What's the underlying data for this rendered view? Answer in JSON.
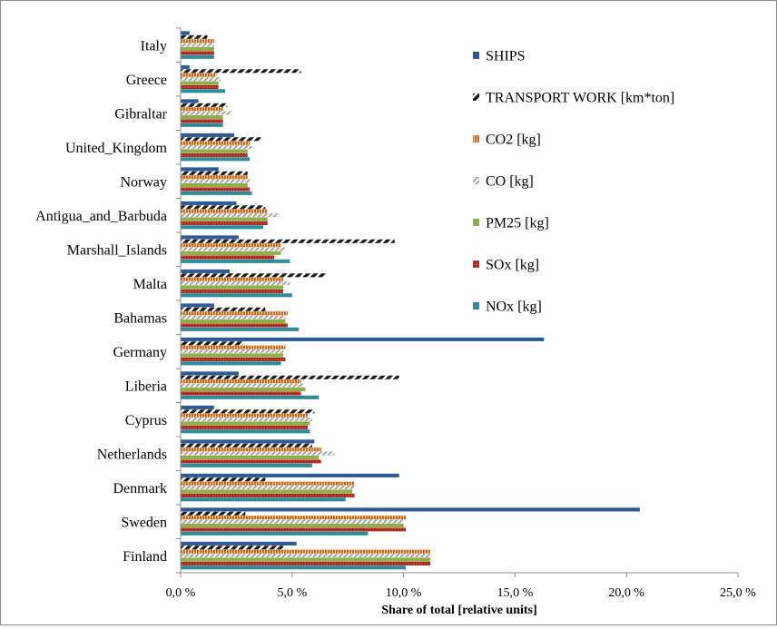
{
  "chart_data": {
    "type": "bar",
    "orientation": "horizontal",
    "xlabel": "Share of total [relative units]",
    "xlim": [
      0,
      25
    ],
    "x_ticks": [
      "0,0 %",
      "5,0 %",
      "10,0 %",
      "15,0 %",
      "20,0 %",
      "25,0 %"
    ],
    "legend_position": "right",
    "grid": false,
    "categories": [
      "Italy",
      "Greece",
      "Gibraltar",
      "United_Kingdom",
      "Norway",
      "Antigua_and_Barbuda",
      "Marshall_Islands",
      "Malta",
      "Bahamas",
      "Germany",
      "Liberia",
      "Cyprus",
      "Netherlands",
      "Denmark",
      "Sweden",
      "Finland"
    ],
    "series": [
      {
        "name": "SHIPS",
        "color": "#2e5a96",
        "pattern": "solid",
        "values": [
          0.4,
          0.4,
          0.8,
          2.4,
          1.7,
          2.5,
          2.6,
          2.2,
          1.5,
          16.3,
          2.6,
          1.5,
          6.0,
          9.8,
          20.6,
          5.2
        ]
      },
      {
        "name": "TRANSPORT WORK [km*ton]",
        "color": "#1a1a1a",
        "pattern": "diagonal-dark",
        "values": [
          1.2,
          5.4,
          2.1,
          3.6,
          3.0,
          3.8,
          9.6,
          6.5,
          3.8,
          2.8,
          9.8,
          6.0,
          5.9,
          3.8,
          2.9,
          4.6
        ]
      },
      {
        "name": "CO2 [kg]",
        "color": "#d0660f",
        "pattern": "vertical-stripes",
        "values": [
          1.5,
          1.6,
          1.9,
          3.1,
          3.0,
          3.9,
          4.5,
          4.6,
          4.8,
          4.7,
          5.4,
          5.7,
          6.3,
          7.8,
          10.1,
          11.2
        ]
      },
      {
        "name": "CO [kg]",
        "color": "#a6a6a6",
        "pattern": "diagonal-light",
        "values": [
          1.5,
          1.8,
          2.3,
          3.2,
          3.1,
          4.4,
          4.7,
          4.9,
          4.7,
          4.6,
          5.5,
          5.9,
          6.9,
          7.8,
          10.0,
          11.2
        ]
      },
      {
        "name": "PM25 [kg]",
        "color": "#8db049",
        "pattern": "solid",
        "values": [
          1.5,
          1.7,
          1.9,
          3.0,
          3.0,
          3.9,
          4.5,
          4.6,
          4.7,
          4.6,
          5.6,
          5.8,
          6.2,
          7.7,
          10.0,
          11.2
        ]
      },
      {
        "name": "SOx [kg]",
        "color": "#b71c1c",
        "pattern": "dotted",
        "values": [
          1.5,
          1.7,
          1.9,
          3.0,
          3.1,
          3.9,
          4.2,
          4.6,
          4.8,
          4.7,
          5.4,
          5.7,
          6.3,
          7.8,
          10.1,
          11.2
        ]
      },
      {
        "name": "NOx [kg]",
        "color": "#2e8b9a",
        "pattern": "solid",
        "values": [
          1.5,
          2.0,
          1.9,
          3.1,
          3.2,
          3.7,
          4.9,
          5.0,
          5.3,
          4.5,
          6.2,
          5.8,
          5.9,
          7.4,
          8.4,
          10.1
        ]
      }
    ]
  }
}
